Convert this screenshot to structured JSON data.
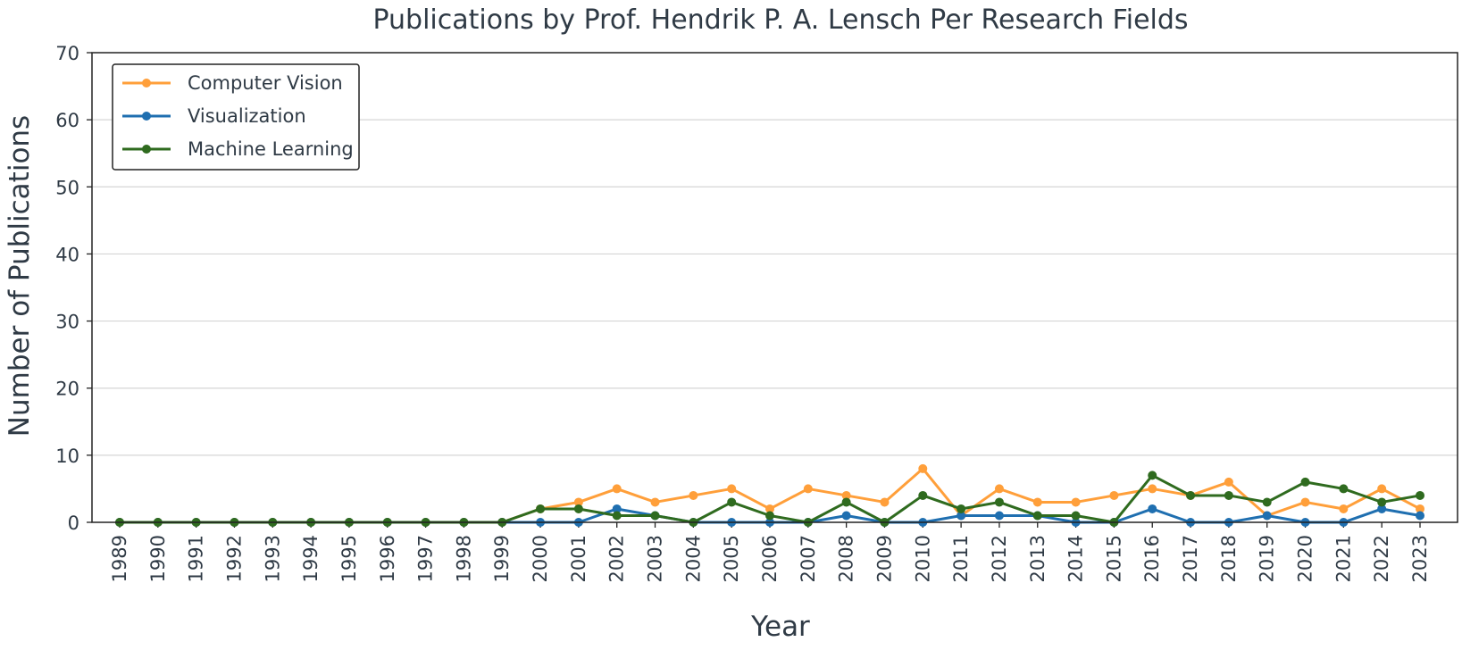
{
  "chart_data": {
    "type": "line",
    "title": "Publications by Prof. Hendrik P. A. Lensch Per Research Fields",
    "xlabel": "Year",
    "ylabel": "Number of Publications",
    "ylim": [
      0,
      70
    ],
    "yticks": [
      0,
      10,
      20,
      30,
      40,
      50,
      60,
      70
    ],
    "grid": "horizontal",
    "legend_position": "top-left",
    "x": [
      "1989",
      "1990",
      "1991",
      "1992",
      "1993",
      "1994",
      "1995",
      "1996",
      "1997",
      "1998",
      "1999",
      "2000",
      "2001",
      "2002",
      "2003",
      "2004",
      "2005",
      "2006",
      "2007",
      "2008",
      "2009",
      "2010",
      "2011",
      "2012",
      "2013",
      "2014",
      "2015",
      "2016",
      "2017",
      "2018",
      "2019",
      "2020",
      "2021",
      "2022",
      "2023"
    ],
    "series": [
      {
        "name": "Computer Vision",
        "color": "#ff9f3a",
        "values": [
          0,
          0,
          0,
          0,
          0,
          0,
          0,
          0,
          0,
          0,
          0,
          2,
          3,
          5,
          3,
          4,
          5,
          2,
          5,
          4,
          3,
          8,
          1,
          5,
          3,
          3,
          4,
          5,
          4,
          6,
          1,
          3,
          2,
          5,
          2
        ]
      },
      {
        "name": "Visualization",
        "color": "#1f6fb0",
        "values": [
          0,
          0,
          0,
          0,
          0,
          0,
          0,
          0,
          0,
          0,
          0,
          0,
          0,
          2,
          1,
          0,
          0,
          0,
          0,
          1,
          0,
          0,
          1,
          1,
          1,
          0,
          0,
          2,
          0,
          0,
          1,
          0,
          0,
          2,
          1
        ]
      },
      {
        "name": "Machine Learning",
        "color": "#2f6b1f",
        "values": [
          0,
          0,
          0,
          0,
          0,
          0,
          0,
          0,
          0,
          0,
          0,
          2,
          2,
          1,
          1,
          0,
          3,
          1,
          0,
          3,
          0,
          4,
          2,
          3,
          1,
          1,
          0,
          7,
          4,
          4,
          3,
          6,
          5,
          3,
          4
        ]
      }
    ]
  }
}
